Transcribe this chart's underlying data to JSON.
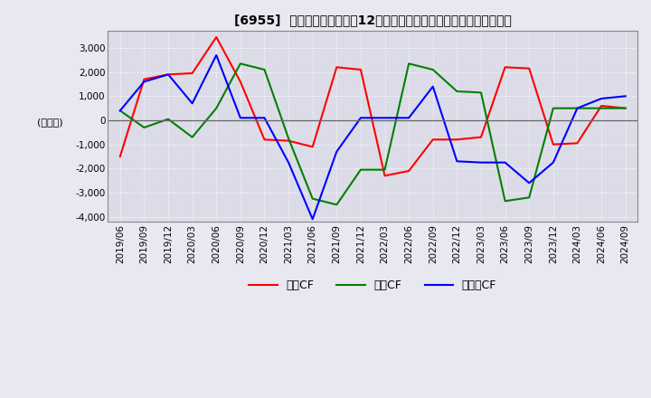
{
  "title": "[6955]  キャッシュフローの12か月移動合計の対前年同期増減額の推移",
  "ylabel": "(百万円)",
  "ylim": [
    -4200,
    3700
  ],
  "yticks": [
    -4000,
    -3000,
    -2000,
    -1000,
    0,
    1000,
    2000,
    3000
  ],
  "legend": [
    "営業CF",
    "投資CF",
    "フリーCF"
  ],
  "colors": {
    "営業CF": "#ff0000",
    "投資CF": "#008000",
    "フリーCF": "#0000ff"
  },
  "x_labels": [
    "2019/06",
    "2019/09",
    "2019/12",
    "2020/03",
    "2020/06",
    "2020/09",
    "2020/12",
    "2021/03",
    "2021/06",
    "2021/09",
    "2021/12",
    "2022/03",
    "2022/06",
    "2022/09",
    "2022/12",
    "2023/03",
    "2023/06",
    "2023/09",
    "2023/12",
    "2024/03",
    "2024/06",
    "2024/09"
  ],
  "営業CF": [
    -1500,
    1700,
    1900,
    1950,
    3450,
    1600,
    -800,
    -850,
    -1100,
    2200,
    2100,
    -2300,
    -2100,
    -800,
    -800,
    -700,
    2200,
    2150,
    -1000,
    -950,
    600,
    500
  ],
  "投資CF": [
    400,
    -300,
    50,
    -700,
    500,
    2350,
    2100,
    -750,
    -3250,
    -3500,
    -2050,
    -2050,
    2350,
    2100,
    1200,
    1150,
    -3350,
    -3200,
    500,
    500,
    500,
    500
  ],
  "フリーCF": [
    400,
    1600,
    1900,
    700,
    2700,
    100,
    100,
    -1750,
    -4100,
    -1300,
    100,
    100,
    100,
    1400,
    -1700,
    -1750,
    -1750,
    -2600,
    -1750,
    500,
    900,
    1000
  ],
  "background_color": "#e8e8f0",
  "plot_bg_color": "#dcdce8",
  "grid_color": "#ffffff",
  "title_fontsize": 10,
  "tick_fontsize": 7.5
}
